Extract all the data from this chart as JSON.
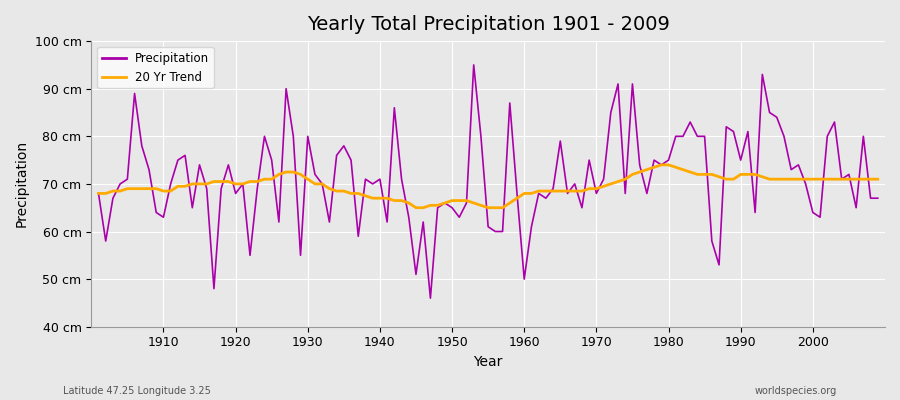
{
  "title": "Yearly Total Precipitation 1901 - 2009",
  "xlabel": "Year",
  "ylabel": "Precipitation",
  "subtitle": "Latitude 47.25 Longitude 3.25",
  "watermark": "worldspecies.org",
  "bg_color": "#e8e8e8",
  "plot_bg_color": "#e8e8e8",
  "precip_color": "#aa00aa",
  "trend_color": "#ffaa00",
  "ylim": [
    40,
    100
  ],
  "ytick_labels": [
    "40 cm",
    "50 cm",
    "60 cm",
    "70 cm",
    "80 cm",
    "90 cm",
    "100 cm"
  ],
  "ytick_values": [
    40,
    50,
    60,
    70,
    80,
    90,
    100
  ],
  "years": [
    1901,
    1902,
    1903,
    1904,
    1905,
    1906,
    1907,
    1908,
    1909,
    1910,
    1911,
    1912,
    1913,
    1914,
    1915,
    1916,
    1917,
    1918,
    1919,
    1920,
    1921,
    1922,
    1923,
    1924,
    1925,
    1926,
    1927,
    1928,
    1929,
    1930,
    1931,
    1932,
    1933,
    1934,
    1935,
    1936,
    1937,
    1938,
    1939,
    1940,
    1941,
    1942,
    1943,
    1944,
    1945,
    1946,
    1947,
    1948,
    1949,
    1950,
    1951,
    1952,
    1953,
    1954,
    1955,
    1956,
    1957,
    1958,
    1959,
    1960,
    1961,
    1962,
    1963,
    1964,
    1965,
    1966,
    1967,
    1968,
    1969,
    1970,
    1971,
    1972,
    1973,
    1974,
    1975,
    1976,
    1977,
    1978,
    1979,
    1980,
    1981,
    1982,
    1983,
    1984,
    1985,
    1986,
    1987,
    1988,
    1989,
    1990,
    1991,
    1992,
    1993,
    1994,
    1995,
    1996,
    1997,
    1998,
    1999,
    2000,
    2001,
    2002,
    2003,
    2004,
    2005,
    2006,
    2007,
    2008,
    2009
  ],
  "precip": [
    68,
    58,
    67,
    70,
    71,
    89,
    78,
    73,
    64,
    63,
    70,
    75,
    76,
    65,
    74,
    69,
    48,
    69,
    74,
    68,
    70,
    55,
    69,
    80,
    75,
    62,
    90,
    80,
    55,
    80,
    72,
    70,
    62,
    76,
    78,
    75,
    59,
    71,
    70,
    71,
    62,
    86,
    71,
    63,
    51,
    62,
    46,
    65,
    66,
    65,
    63,
    66,
    95,
    80,
    61,
    60,
    60,
    87,
    68,
    50,
    61,
    68,
    67,
    69,
    79,
    68,
    70,
    65,
    75,
    68,
    71,
    85,
    91,
    68,
    91,
    74,
    68,
    75,
    74,
    75,
    80,
    80,
    83,
    80,
    80,
    58,
    53,
    82,
    81,
    75,
    81,
    64,
    93,
    85,
    84,
    80,
    73,
    74,
    70,
    64,
    63,
    80,
    83,
    71,
    72,
    65,
    80,
    67,
    67
  ],
  "trend": [
    68,
    68,
    68.5,
    68.5,
    69,
    69,
    69,
    69,
    69,
    68.5,
    68.5,
    69.5,
    69.5,
    70,
    70,
    70,
    70.5,
    70.5,
    70.5,
    70,
    70,
    70.5,
    70.5,
    71,
    71,
    72,
    72.5,
    72.5,
    72,
    71,
    70,
    70,
    69,
    68.5,
    68.5,
    68,
    68,
    67.5,
    67,
    67,
    67,
    66.5,
    66.5,
    66,
    65,
    65,
    65.5,
    65.5,
    66,
    66.5,
    66.5,
    66.5,
    66,
    65.5,
    65,
    65,
    65,
    66,
    67,
    68,
    68,
    68.5,
    68.5,
    68.5,
    68.5,
    68.5,
    68.5,
    68.5,
    69,
    69,
    69.5,
    70,
    70.5,
    71,
    72,
    72.5,
    73,
    73.5,
    74,
    74,
    73.5,
    73,
    72.5,
    72,
    72,
    72,
    71.5,
    71,
    71,
    72,
    72,
    72,
    71.5,
    71,
    71,
    71,
    71,
    71,
    71,
    71,
    71,
    71,
    71,
    71,
    71,
    71,
    71,
    71,
    71
  ]
}
